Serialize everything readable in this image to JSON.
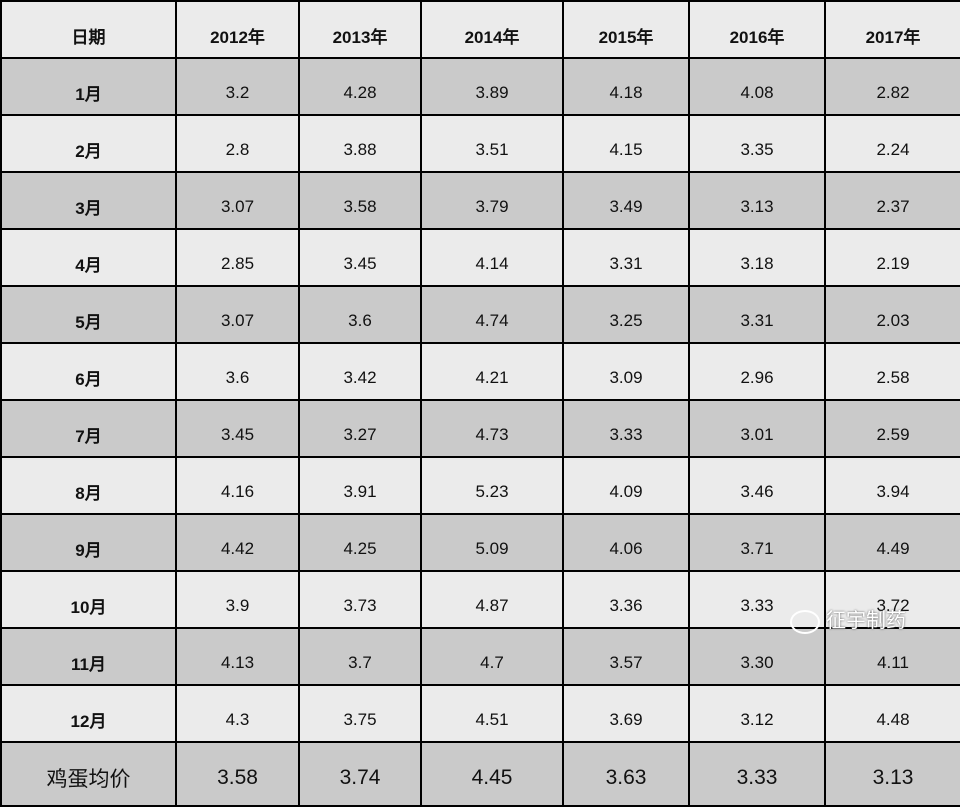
{
  "table": {
    "header": [
      "日期",
      "2012年",
      "2013年",
      "2014年",
      "2015年",
      "2016年",
      "2017年"
    ],
    "rows": [
      [
        "1月",
        "3.2",
        "4.28",
        "3.89",
        "4.18",
        "4.08",
        "2.82"
      ],
      [
        "2月",
        "2.8",
        "3.88",
        "3.51",
        "4.15",
        "3.35",
        "2.24"
      ],
      [
        "3月",
        "3.07",
        "3.58",
        "3.79",
        "3.49",
        "3.13",
        "2.37"
      ],
      [
        "4月",
        "2.85",
        "3.45",
        "4.14",
        "3.31",
        "3.18",
        "2.19"
      ],
      [
        "5月",
        "3.07",
        "3.6",
        "4.74",
        "3.25",
        "3.31",
        "2.03"
      ],
      [
        "6月",
        "3.6",
        "3.42",
        "4.21",
        "3.09",
        "2.96",
        "2.58"
      ],
      [
        "7月",
        "3.45",
        "3.27",
        "4.73",
        "3.33",
        "3.01",
        "2.59"
      ],
      [
        "8月",
        "4.16",
        "3.91",
        "5.23",
        "4.09",
        "3.46",
        "3.94"
      ],
      [
        "9月",
        "4.42",
        "4.25",
        "5.09",
        "4.06",
        "3.71",
        "4.49"
      ],
      [
        "10月",
        "3.9",
        "3.73",
        "4.87",
        "3.36",
        "3.33",
        "3.72"
      ],
      [
        "11月",
        "4.13",
        "3.7",
        "4.7",
        "3.57",
        "3.30",
        "4.11"
      ],
      [
        "12月",
        "4.3",
        "3.75",
        "4.51",
        "3.69",
        "3.12",
        "4.48"
      ]
    ],
    "footer": [
      "鸡蛋均价",
      "3.58",
      "3.74",
      "4.45",
      "3.63",
      "3.33",
      "3.13"
    ],
    "watermark": "征宇制药"
  }
}
